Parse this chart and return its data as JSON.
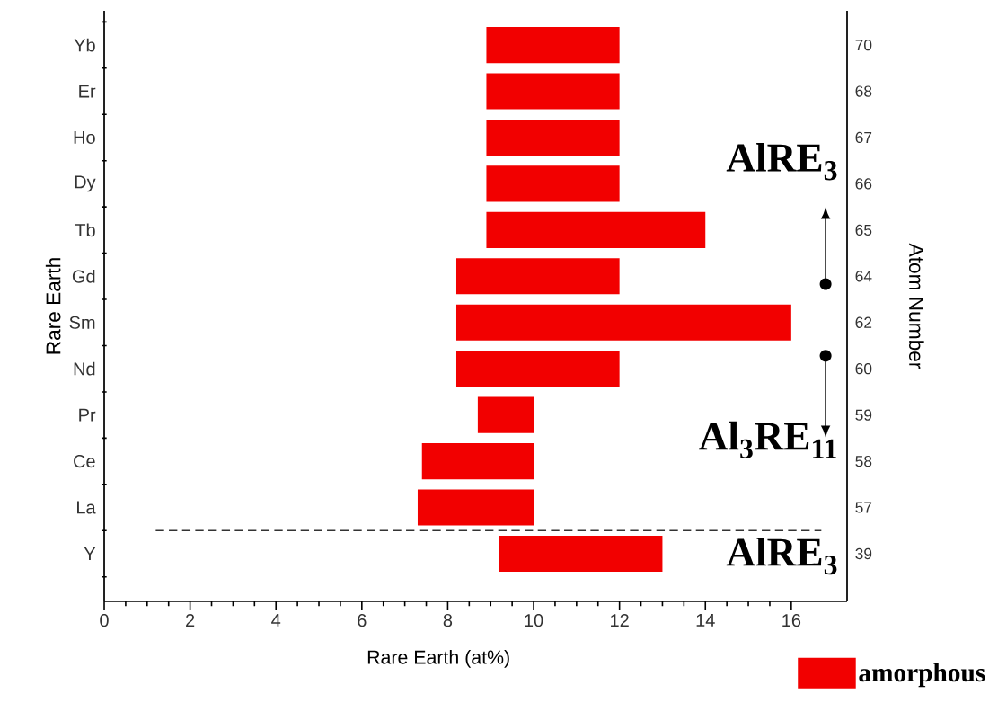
{
  "chart_data": {
    "type": "bar",
    "orientation": "horizontal",
    "xlabel": "Rare Earth (at%)",
    "ylabel": "Rare Earth",
    "y2label": "Atom Number",
    "categories": [
      "Yb",
      "Er",
      "Ho",
      "Dy",
      "Tb",
      "Gd",
      "Sm",
      "Nd",
      "Pr",
      "Ce",
      "La",
      "Y"
    ],
    "series": [
      {
        "name": "amorphous",
        "color": "#f20000",
        "base": [
          8.9,
          8.9,
          8.9,
          8.9,
          8.9,
          8.2,
          8.2,
          8.2,
          8.7,
          7.4,
          7.3,
          9.2
        ],
        "values": [
          3.1,
          3.1,
          3.1,
          3.1,
          5.1,
          3.8,
          7.8,
          3.8,
          1.3,
          2.6,
          2.7,
          3.8
        ]
      }
    ],
    "xlim": [
      0,
      17.3
    ],
    "xticks": [
      0,
      2,
      4,
      6,
      8,
      10,
      12,
      14,
      16
    ],
    "legend": "bottom right",
    "annotations": [
      "70",
      "68",
      "67",
      "66",
      "65",
      "64",
      "62",
      "60",
      "59",
      "58",
      "57",
      "39",
      "AlRE$_{3}$",
      "Al$_{3}$RE$_{11}$",
      "AlRE$_{3}$"
    ]
  }
}
